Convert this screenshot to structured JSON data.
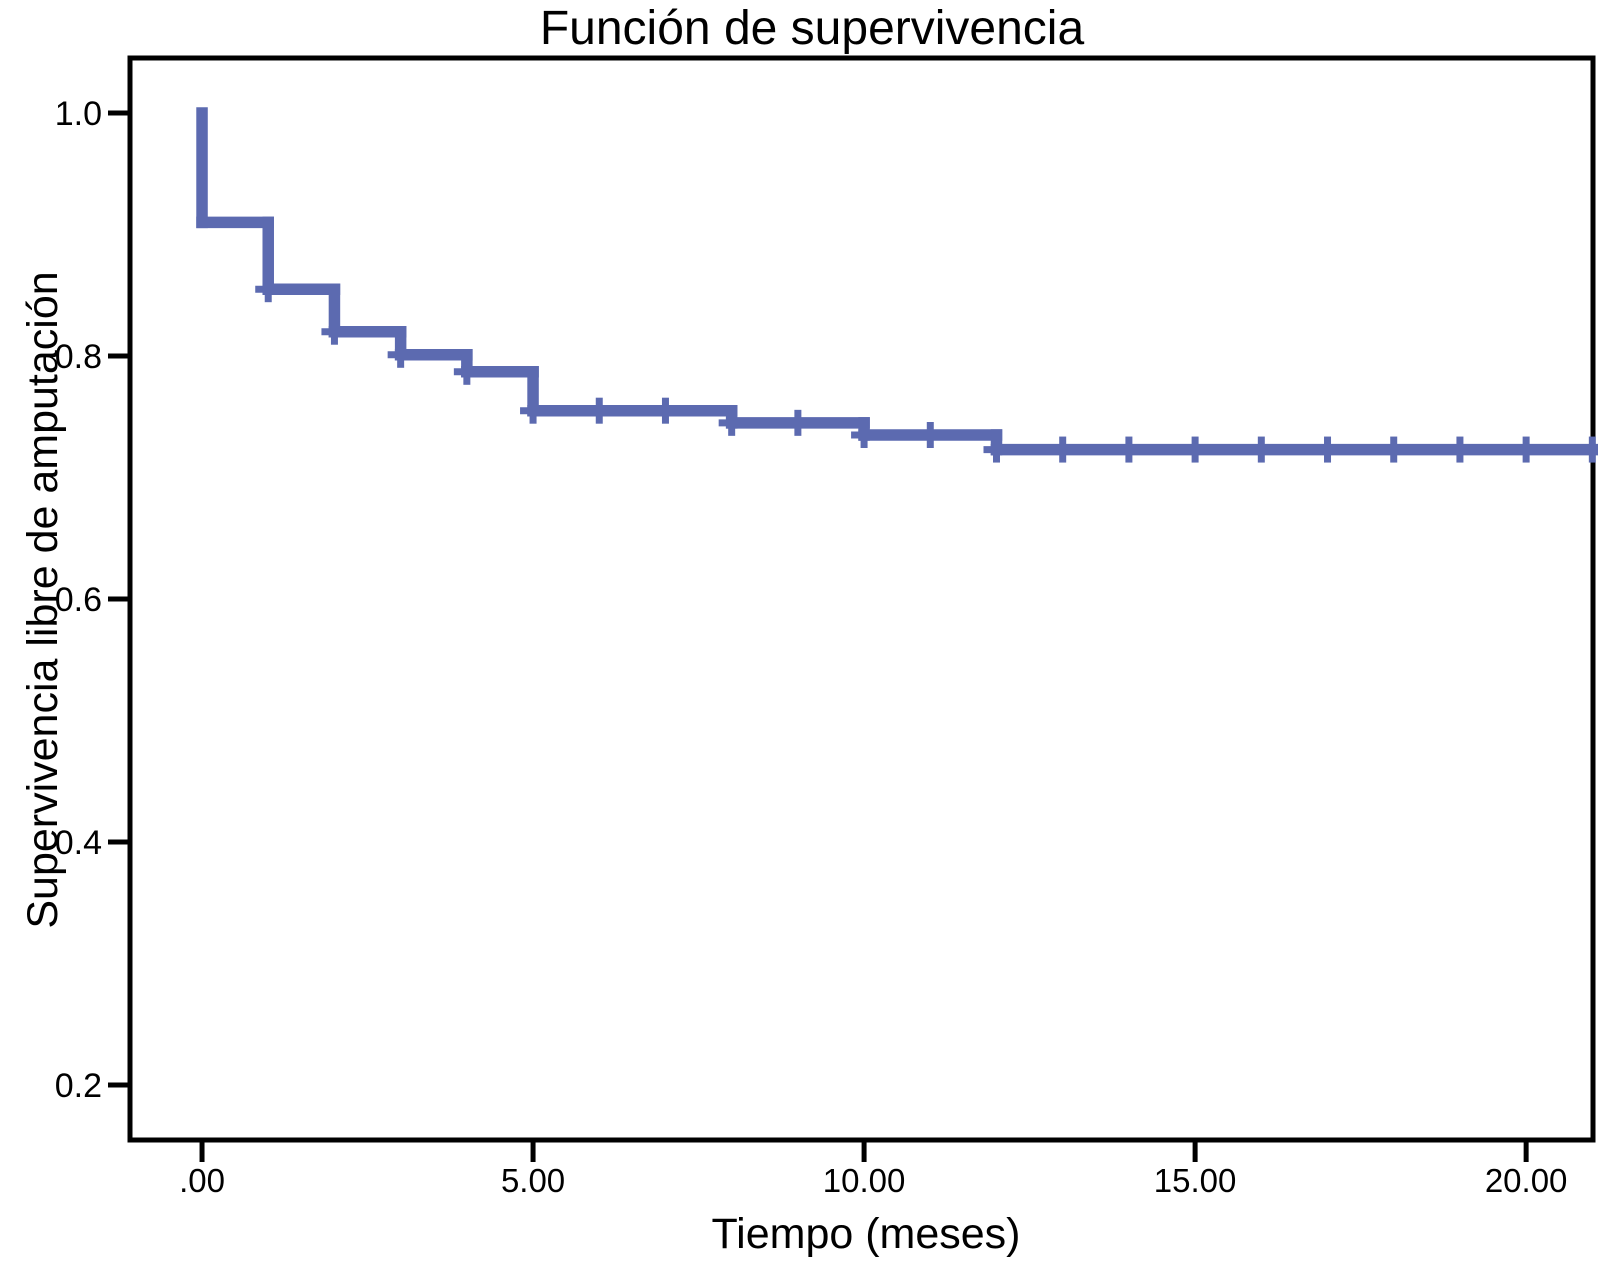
{
  "chart_data": {
    "type": "line",
    "subtype": "kaplan-meier-step-function",
    "title": "Función de supervivencia",
    "xlabel": "Tiempo (meses)",
    "ylabel": "Supervivencia libre de amputación",
    "grid": false,
    "legend": "none",
    "xlim": [
      -1.088,
      21.01
    ],
    "ylim": [
      0.1547,
      1.0453
    ],
    "x_ticks": [
      {
        "value": 0,
        "label": ".00"
      },
      {
        "value": 5,
        "label": "5.00"
      },
      {
        "value": 10,
        "label": "10.00"
      },
      {
        "value": 15,
        "label": "15.00"
      },
      {
        "value": 20,
        "label": "20.00"
      }
    ],
    "y_ticks": [
      {
        "value": 1.0,
        "label": "1.0"
      },
      {
        "value": 0.8,
        "label": "0.8"
      },
      {
        "value": 0.6,
        "label": "0.6"
      },
      {
        "value": 0.4,
        "label": "0.4"
      },
      {
        "value": 0.2,
        "label": "0.2"
      }
    ],
    "series": [
      {
        "name": "Supervivencia libre de amputación",
        "color": "#5C6AB0",
        "start": {
          "t": 0,
          "s": 1.0
        },
        "steps": [
          {
            "t": 0,
            "s": 0.91
          },
          {
            "t": 1,
            "s": 0.855
          },
          {
            "t": 2,
            "s": 0.82
          },
          {
            "t": 3,
            "s": 0.801
          },
          {
            "t": 4,
            "s": 0.787
          },
          {
            "t": 5,
            "s": 0.755
          },
          {
            "t": 8,
            "s": 0.745
          },
          {
            "t": 10,
            "s": 0.735
          },
          {
            "t": 12,
            "s": 0.723
          }
        ],
        "end_t": 21.0,
        "censor_marks": [
          {
            "t": 1,
            "s": 0.855
          },
          {
            "t": 2,
            "s": 0.82
          },
          {
            "t": 3,
            "s": 0.801
          },
          {
            "t": 4,
            "s": 0.787
          },
          {
            "t": 5,
            "s": 0.755
          },
          {
            "t": 6,
            "s": 0.755
          },
          {
            "t": 7,
            "s": 0.755
          },
          {
            "t": 8,
            "s": 0.745
          },
          {
            "t": 9,
            "s": 0.745
          },
          {
            "t": 10,
            "s": 0.735
          },
          {
            "t": 11,
            "s": 0.735
          },
          {
            "t": 12,
            "s": 0.723
          },
          {
            "t": 13,
            "s": 0.723
          },
          {
            "t": 14,
            "s": 0.723
          },
          {
            "t": 15,
            "s": 0.723
          },
          {
            "t": 16,
            "s": 0.723
          },
          {
            "t": 17,
            "s": 0.723
          },
          {
            "t": 18,
            "s": 0.723
          },
          {
            "t": 19,
            "s": 0.723
          },
          {
            "t": 20,
            "s": 0.723
          },
          {
            "t": 21,
            "s": 0.723
          }
        ]
      }
    ],
    "colors": {
      "curve": "#5C6AB0",
      "axis": "#000000",
      "background": "#FFFFFF"
    }
  }
}
